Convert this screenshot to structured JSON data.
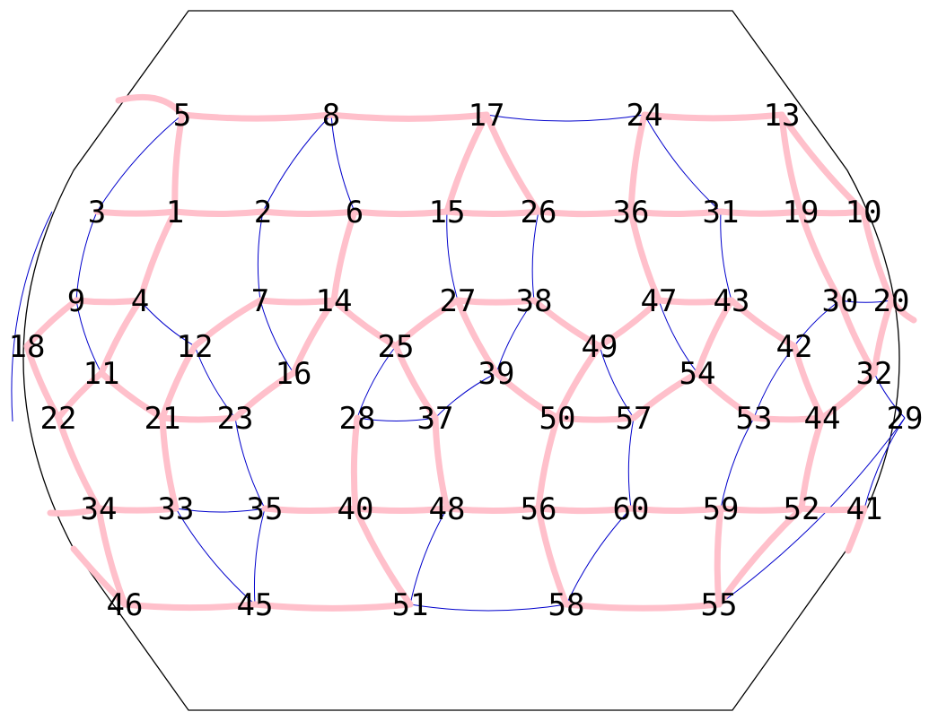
{
  "colors": {
    "thick_edge": "#ffc0cb",
    "thin_edge": "#0000cc",
    "boundary": "#000000",
    "label": "#000000"
  },
  "nodes": [
    {
      "id": "1"
    },
    {
      "id": "2"
    },
    {
      "id": "3"
    },
    {
      "id": "4"
    },
    {
      "id": "5"
    },
    {
      "id": "6"
    },
    {
      "id": "7"
    },
    {
      "id": "8"
    },
    {
      "id": "9"
    },
    {
      "id": "10"
    },
    {
      "id": "11"
    },
    {
      "id": "12"
    },
    {
      "id": "13"
    },
    {
      "id": "14"
    },
    {
      "id": "15"
    },
    {
      "id": "16"
    },
    {
      "id": "17"
    },
    {
      "id": "18"
    },
    {
      "id": "19"
    },
    {
      "id": "20"
    },
    {
      "id": "21"
    },
    {
      "id": "22"
    },
    {
      "id": "23"
    },
    {
      "id": "24"
    },
    {
      "id": "25"
    },
    {
      "id": "26"
    },
    {
      "id": "27"
    },
    {
      "id": "28"
    },
    {
      "id": "29"
    },
    {
      "id": "30"
    },
    {
      "id": "31"
    },
    {
      "id": "32"
    },
    {
      "id": "33"
    },
    {
      "id": "34"
    },
    {
      "id": "35"
    },
    {
      "id": "36"
    },
    {
      "id": "37"
    },
    {
      "id": "38"
    },
    {
      "id": "39"
    },
    {
      "id": "40"
    },
    {
      "id": "41"
    },
    {
      "id": "42"
    },
    {
      "id": "43"
    },
    {
      "id": "44"
    },
    {
      "id": "45"
    },
    {
      "id": "46"
    },
    {
      "id": "47"
    },
    {
      "id": "48"
    },
    {
      "id": "49"
    },
    {
      "id": "50"
    },
    {
      "id": "51"
    },
    {
      "id": "52"
    },
    {
      "id": "53"
    },
    {
      "id": "54"
    },
    {
      "id": "55"
    },
    {
      "id": "56"
    },
    {
      "id": "57"
    },
    {
      "id": "58"
    },
    {
      "id": "59"
    },
    {
      "id": "60"
    }
  ],
  "edges_thick": [
    [
      "5",
      "1"
    ],
    [
      "5",
      "8"
    ],
    [
      "8",
      "17"
    ],
    [
      "17",
      "15"
    ],
    [
      "17",
      "26"
    ],
    [
      "24",
      "13"
    ],
    [
      "24",
      "36"
    ],
    [
      "3",
      "1"
    ],
    [
      "1",
      "2"
    ],
    [
      "2",
      "6"
    ],
    [
      "6",
      "15"
    ],
    [
      "15",
      "26"
    ],
    [
      "26",
      "36"
    ],
    [
      "36",
      "31"
    ],
    [
      "31",
      "19"
    ],
    [
      "19",
      "10"
    ],
    [
      "13",
      "19"
    ],
    [
      "13",
      "10"
    ],
    [
      "1",
      "4"
    ],
    [
      "6",
      "14"
    ],
    [
      "36",
      "47"
    ],
    [
      "19",
      "30"
    ],
    [
      "10",
      "20"
    ],
    [
      "9",
      "18"
    ],
    [
      "9",
      "4"
    ],
    [
      "7",
      "14"
    ],
    [
      "27",
      "38"
    ],
    [
      "47",
      "43"
    ],
    [
      "14",
      "25"
    ],
    [
      "14",
      "16"
    ],
    [
      "27",
      "25"
    ],
    [
      "27",
      "39"
    ],
    [
      "38",
      "49"
    ],
    [
      "49",
      "47"
    ],
    [
      "43",
      "42"
    ],
    [
      "43",
      "54"
    ],
    [
      "4",
      "11"
    ],
    [
      "7",
      "12"
    ],
    [
      "12",
      "21"
    ],
    [
      "30",
      "32"
    ],
    [
      "20",
      "32"
    ],
    [
      "42",
      "44"
    ],
    [
      "18",
      "22"
    ],
    [
      "11",
      "22"
    ],
    [
      "11",
      "21"
    ],
    [
      "16",
      "23"
    ],
    [
      "21",
      "23"
    ],
    [
      "25",
      "37"
    ],
    [
      "39",
      "50"
    ],
    [
      "49",
      "50"
    ],
    [
      "50",
      "57"
    ],
    [
      "54",
      "57"
    ],
    [
      "54",
      "53"
    ],
    [
      "53",
      "44"
    ],
    [
      "44",
      "32"
    ],
    [
      "22",
      "34"
    ],
    [
      "21",
      "33"
    ],
    [
      "28",
      "40"
    ],
    [
      "37",
      "48"
    ],
    [
      "50",
      "56"
    ],
    [
      "44",
      "52"
    ],
    [
      "34",
      "33"
    ],
    [
      "35",
      "40"
    ],
    [
      "40",
      "48"
    ],
    [
      "48",
      "56"
    ],
    [
      "56",
      "60"
    ],
    [
      "60",
      "59"
    ],
    [
      "59",
      "52"
    ],
    [
      "52",
      "41"
    ],
    [
      "34",
      "46"
    ],
    [
      "40",
      "51"
    ],
    [
      "56",
      "58"
    ],
    [
      "59",
      "55"
    ],
    [
      "52",
      "55"
    ],
    [
      "46",
      "45"
    ],
    [
      "45",
      "51"
    ],
    [
      "58",
      "55"
    ]
  ],
  "edges_thin": [
    [
      "5",
      "3"
    ],
    [
      "8",
      "2"
    ],
    [
      "8",
      "6"
    ],
    [
      "17",
      "24"
    ],
    [
      "24",
      "31"
    ],
    [
      "13",
      "10"
    ],
    [
      "3",
      "9"
    ],
    [
      "2",
      "7"
    ],
    [
      "15",
      "27"
    ],
    [
      "26",
      "38"
    ],
    [
      "31",
      "43"
    ],
    [
      "9",
      "4"
    ],
    [
      "4",
      "12"
    ],
    [
      "9",
      "11"
    ],
    [
      "7",
      "16"
    ],
    [
      "25",
      "28"
    ],
    [
      "38",
      "39"
    ],
    [
      "39",
      "37"
    ],
    [
      "28",
      "37"
    ],
    [
      "47",
      "54"
    ],
    [
      "49",
      "57"
    ],
    [
      "30",
      "42"
    ],
    [
      "30",
      "20"
    ],
    [
      "42",
      "53"
    ],
    [
      "32",
      "29"
    ],
    [
      "18",
      "22"
    ],
    [
      "12",
      "23"
    ],
    [
      "23",
      "35"
    ],
    [
      "57",
      "60"
    ],
    [
      "53",
      "59"
    ],
    [
      "29",
      "41"
    ],
    [
      "33",
      "35"
    ],
    [
      "33",
      "45"
    ],
    [
      "35",
      "45"
    ],
    [
      "48",
      "51"
    ],
    [
      "51",
      "58"
    ],
    [
      "60",
      "58"
    ],
    [
      "55",
      "29"
    ]
  ]
}
